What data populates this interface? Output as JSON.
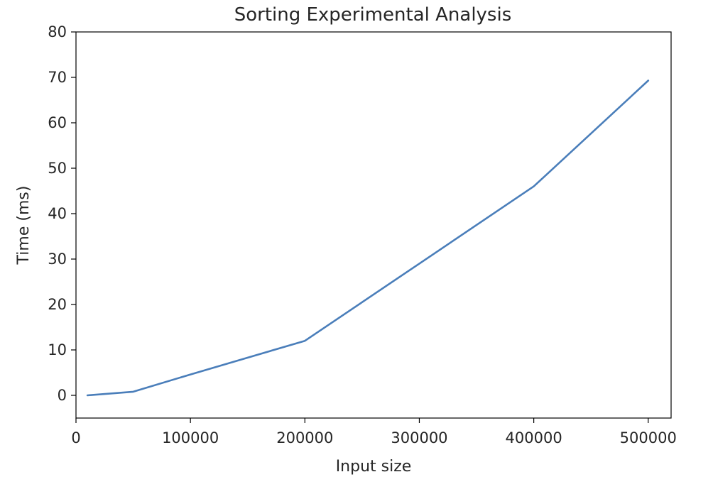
{
  "chart_data": {
    "type": "line",
    "title": "Sorting Experimental Analysis",
    "xlabel": "Input size",
    "ylabel": "Time (ms)",
    "xlim": [
      0,
      520000
    ],
    "ylim": [
      -5,
      80
    ],
    "xticks": [
      0,
      100000,
      200000,
      300000,
      400000,
      500000
    ],
    "xtick_labels": [
      "0",
      "100000",
      "200000",
      "300000",
      "400000",
      "500000"
    ],
    "yticks": [
      0,
      10,
      20,
      30,
      40,
      50,
      60,
      70,
      80
    ],
    "ytick_labels": [
      "0",
      "10",
      "20",
      "30",
      "40",
      "50",
      "60",
      "70",
      "80"
    ],
    "grid": false,
    "series": [
      {
        "color": "#4a7eba",
        "x": [
          10000,
          50000,
          100000,
          200000,
          300000,
          400000,
          500000
        ],
        "y": [
          0,
          0.8,
          4.6,
          12,
          29,
          46,
          69.3
        ]
      }
    ]
  }
}
